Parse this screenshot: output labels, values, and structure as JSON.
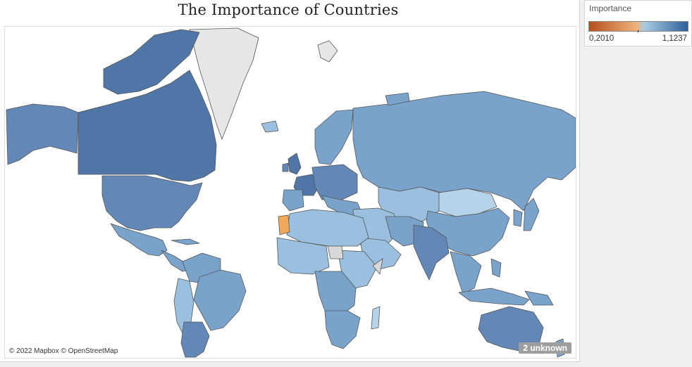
{
  "title": "The Importance of Countries",
  "legend": {
    "title": "Importance",
    "min_label": "0,2010",
    "max_label": "1,1237",
    "colors": [
      "#b5501d",
      "#f0b27a",
      "#a9cce3",
      "#2e5f9a"
    ]
  },
  "attribution": "© 2022 Mapbox © OpenStreetMap",
  "unknown_badge": "2 unknown",
  "colors": {
    "ocean": "#ffffff",
    "no_data": "#e6e6e6",
    "country_border": "#555555",
    "very_dark_blue": "#4f76a7",
    "dark_blue": "#6388b8",
    "mid_blue": "#7aa3cc",
    "light_blue": "#9bc0df",
    "pale_blue": "#b7d3ea",
    "neutral": "#d8d8d8",
    "orange": "#f2a65a"
  }
}
